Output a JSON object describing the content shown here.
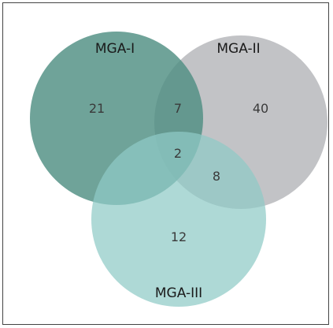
{
  "venn": {
    "sets": [
      {
        "label": "MGA-I",
        "color": "#5a9a8e"
      },
      {
        "label": "MGA-II",
        "color": "#bdbec1"
      },
      {
        "label": "MGA-III",
        "color": "#a6d4d1"
      }
    ],
    "regions": {
      "only_I": "21",
      "I_II": "7",
      "only_II": "40",
      "I_II_III": "2",
      "II_III": "8",
      "only_III": "12"
    }
  }
}
